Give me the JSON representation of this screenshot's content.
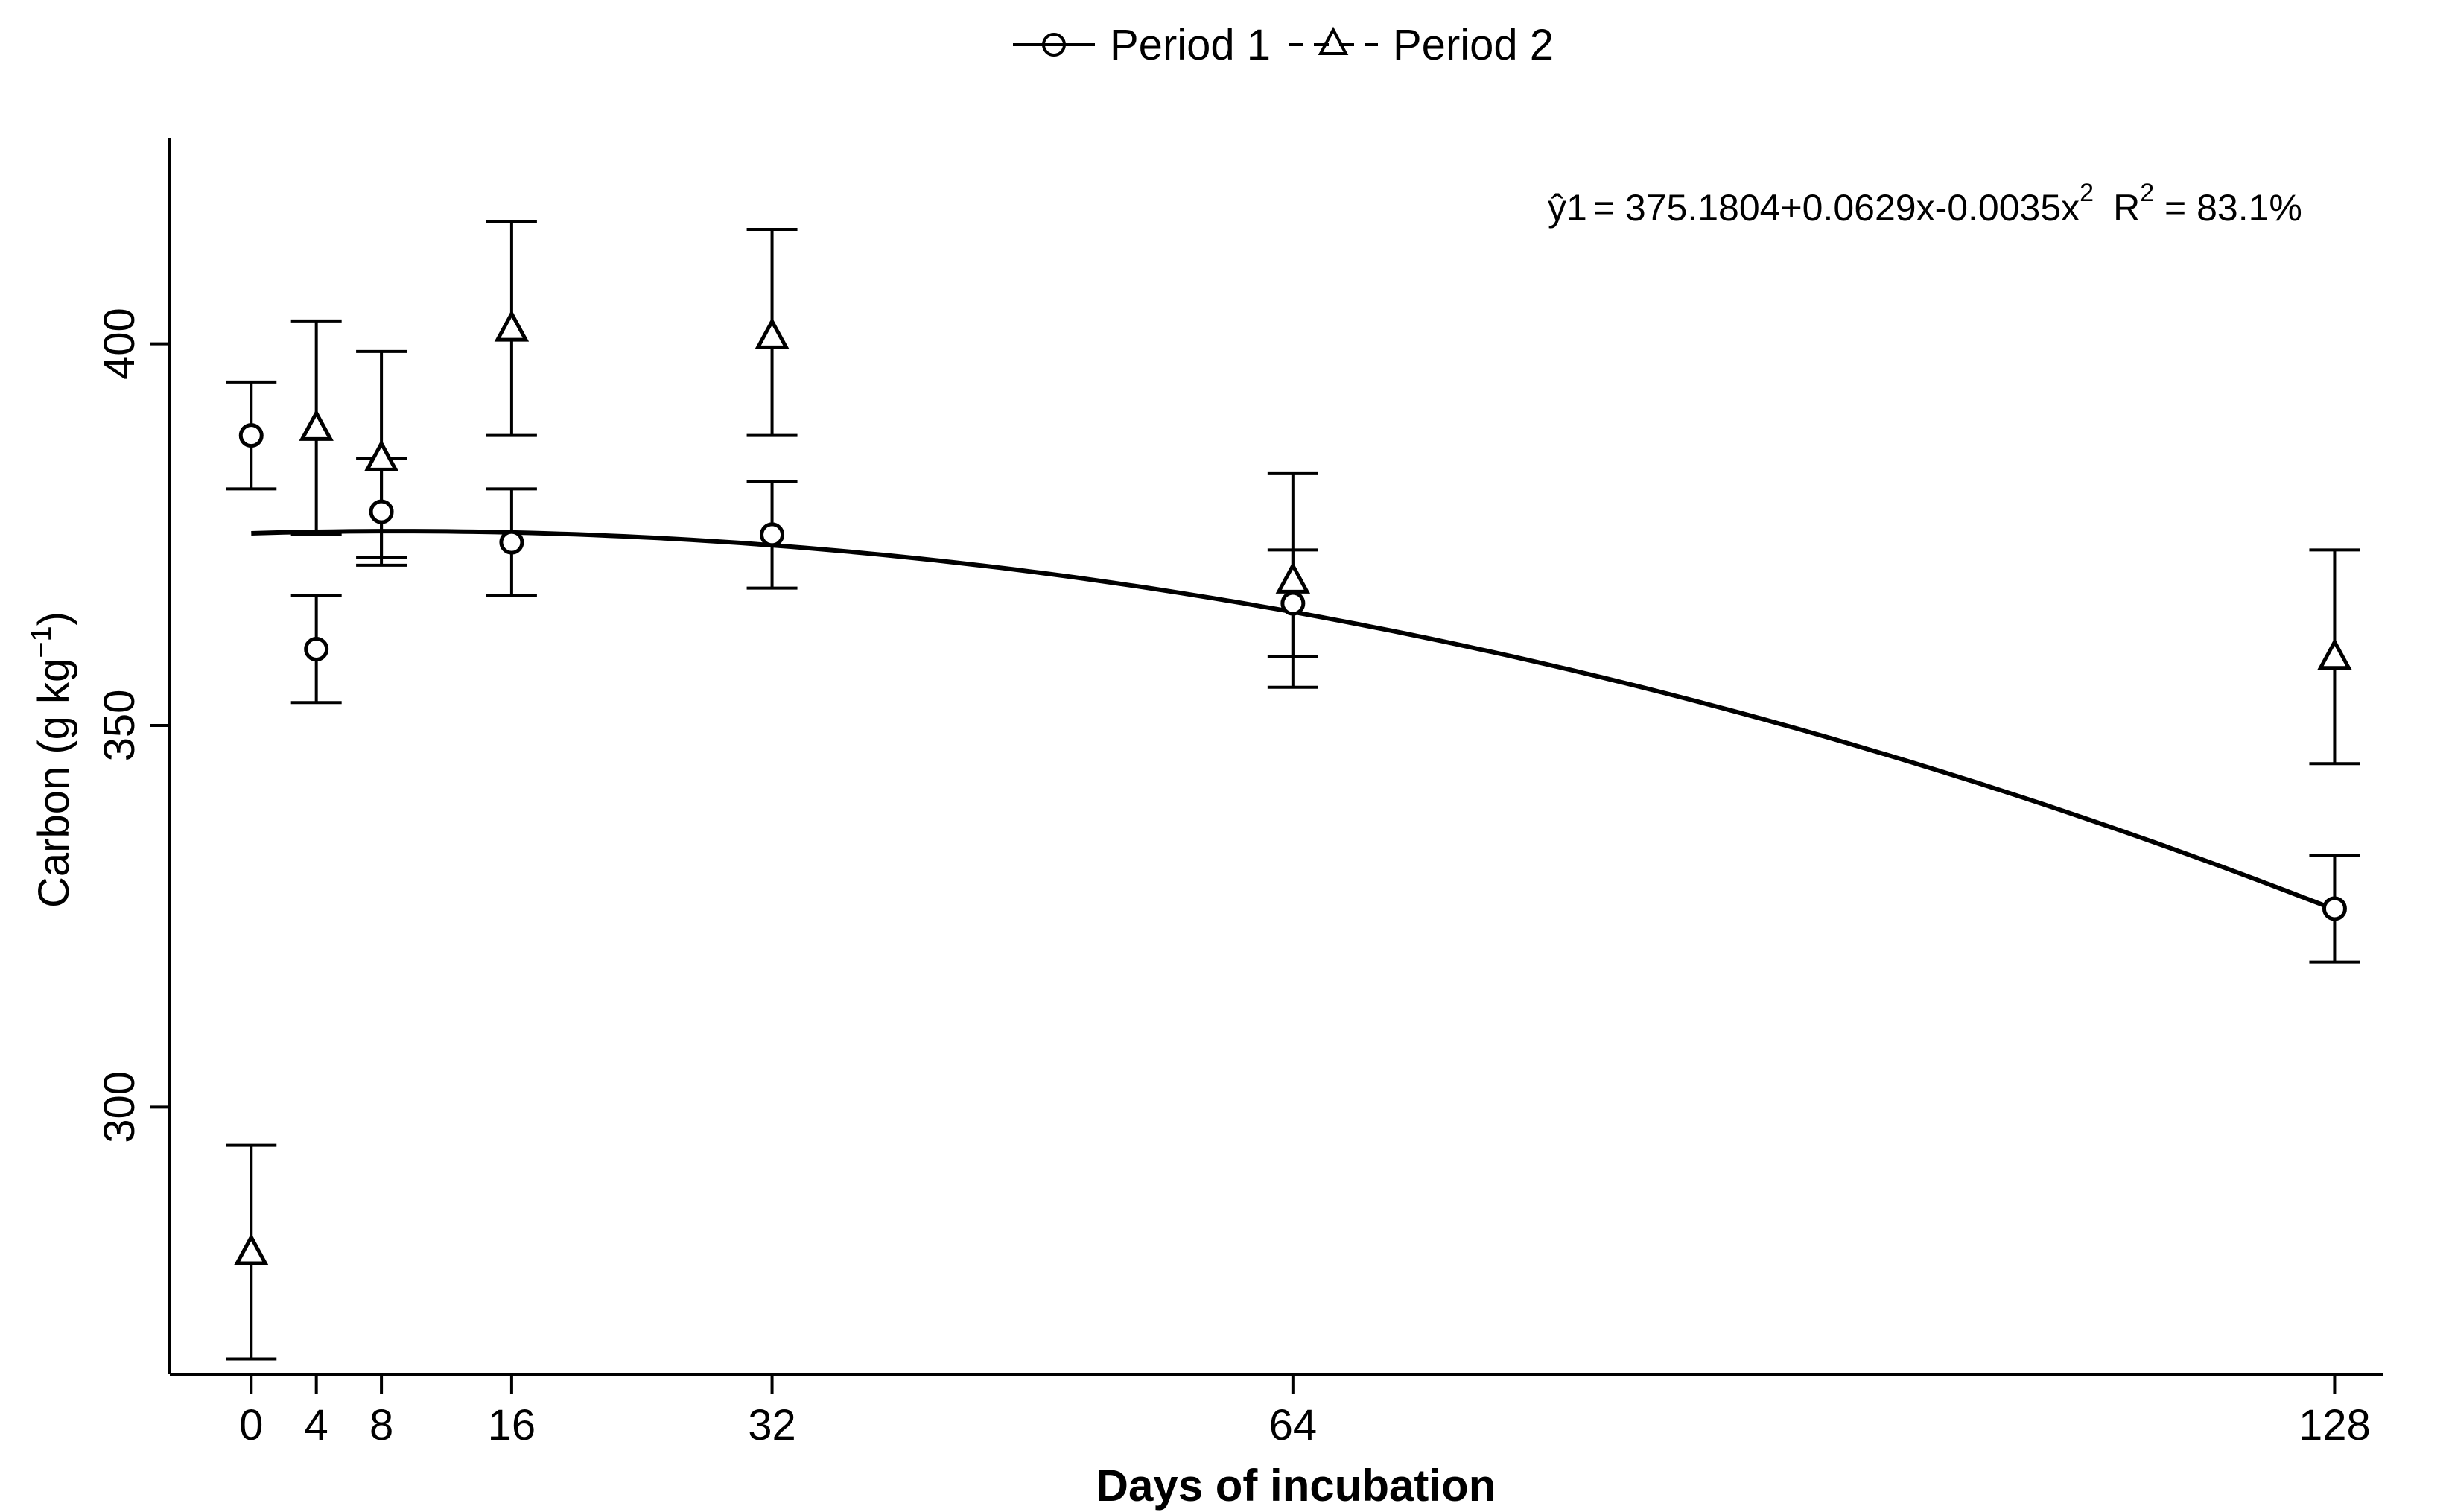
{
  "chart_data": {
    "type": "scatter",
    "xlabel": "Days of incubation",
    "ylabel": "Carbon (g kg",
    "ylabel_exp": "−1",
    "ylabel_close": ")",
    "x_ticks": [
      0,
      4,
      8,
      16,
      32,
      64,
      128
    ],
    "y_ticks": [
      300,
      350,
      400
    ],
    "xlim": [
      -5,
      131
    ],
    "ylim": [
      265,
      427
    ],
    "legend_placement": "top-center",
    "series": [
      {
        "name": "Period 1",
        "marker": "circle",
        "line": "solid",
        "points": [
          {
            "x": 0,
            "y": 388,
            "low": 381,
            "high": 395
          },
          {
            "x": 4,
            "y": 360,
            "low": 353,
            "high": 367
          },
          {
            "x": 8,
            "y": 378,
            "low": 371,
            "high": 385
          },
          {
            "x": 16,
            "y": 374,
            "low": 367,
            "high": 381
          },
          {
            "x": 32,
            "y": 375,
            "low": 368,
            "high": 382
          },
          {
            "x": 64,
            "y": 366,
            "low": 359,
            "high": 373
          },
          {
            "x": 128,
            "y": 326,
            "low": 319,
            "high": 333
          }
        ]
      },
      {
        "name": "Period 2",
        "marker": "triangle",
        "line": "dashed",
        "points": [
          {
            "x": 0,
            "y": 281,
            "low": 267,
            "high": 295
          },
          {
            "x": 4,
            "y": 389,
            "low": 375,
            "high": 403
          },
          {
            "x": 8,
            "y": 385,
            "low": 372,
            "high": 399
          },
          {
            "x": 16,
            "y": 402,
            "low": 388,
            "high": 416
          },
          {
            "x": 32,
            "y": 401,
            "low": 388,
            "high": 415
          },
          {
            "x": 64,
            "y": 369,
            "low": 355,
            "high": 383
          },
          {
            "x": 128,
            "y": 359,
            "low": 345,
            "high": 373
          }
        ]
      }
    ],
    "fit": {
      "series": "Period 1",
      "coefficients": [
        375.1804,
        0.0629,
        -0.0035
      ],
      "equation_lhs": "ŷ1",
      "equation_rhs": "= 375.1804+0.0629x-0.0035x",
      "equation_exp": "2",
      "r2_label": "R",
      "r2_exp": "2",
      "r2_value": " = 83.1%"
    }
  }
}
